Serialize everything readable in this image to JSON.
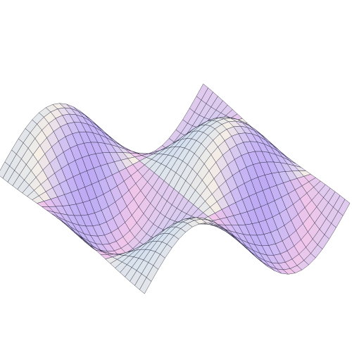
{
  "surface": {
    "function": "sin(x)*cos(y)",
    "x_range": [
      -3.2,
      3.2
    ],
    "y_range": [
      -3.2,
      3.2
    ],
    "mesh_lines": 30
  },
  "colors": {
    "background": "#ffffff",
    "mesh": "#1a1a2e",
    "dark_blue": "#3b2fc9",
    "violet": "#8a6cf0",
    "lavender": "#c9b8f5",
    "pink": "#f2c6ea",
    "cream": "#f6efe6",
    "light_blue": "#b9d3f5"
  }
}
